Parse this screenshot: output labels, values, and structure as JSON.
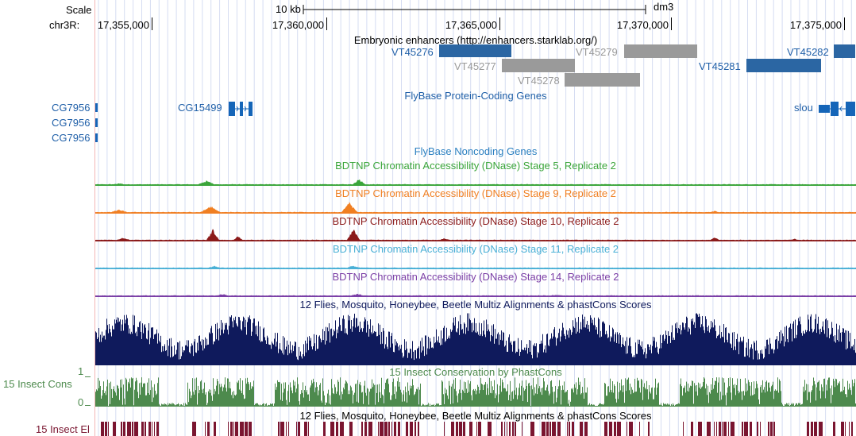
{
  "ruler": {
    "scale_label": "Scale",
    "scale_value": "10 kb",
    "assembly": "dm3",
    "chrom_label": "chr3R:",
    "positions": [
      "17,355,000",
      "17,360,000",
      "17,365,000",
      "17,370,000",
      "17,375,000"
    ]
  },
  "tracks": {
    "enhancers": {
      "title": "Embryonic enhancers (http://enhancers.starklab.org/)",
      "items": [
        {
          "label": "VT45276",
          "color": "#2b66a3"
        },
        {
          "label": "VT45277",
          "color": "#9a9a9a"
        },
        {
          "label": "VT45278",
          "color": "#9a9a9a"
        },
        {
          "label": "VT45279",
          "color": "#9a9a9a"
        },
        {
          "label": "VT45281",
          "color": "#2b66a3"
        },
        {
          "label": "VT45282",
          "color": "#2b66a3"
        }
      ]
    },
    "flybase_coding": {
      "title": "FlyBase Protein-Coding Genes",
      "genes": [
        "CG7956",
        "CG7956",
        "CG7956",
        "CG15499",
        "slou"
      ],
      "color": "#1565b8"
    },
    "flybase_noncoding": {
      "title": "FlyBase Noncoding Genes",
      "color": "#2a7fc0"
    },
    "dnase": [
      {
        "title": "BDTNP Chromatin Accessibility (DNase) Stage 5, Replicate 2",
        "color": "#3aa53a"
      },
      {
        "title": "BDTNP Chromatin Accessibility (DNase) Stage 9, Replicate 2",
        "color": "#f07f22"
      },
      {
        "title": "BDTNP Chromatin Accessibility (DNase) Stage 10, Replicate 2",
        "color": "#8b1a1a"
      },
      {
        "title": "BDTNP Chromatin Accessibility (DNase) Stage 11, Replicate 2",
        "color": "#4ab0d6"
      },
      {
        "title": "BDTNP Chromatin Accessibility (DNase) Stage 14, Replicate 2",
        "color": "#7b3fa6"
      }
    ],
    "multiz": {
      "title": "12 Flies, Mosquito, Honeybee, Beetle Multiz Alignments & phastCons Scores",
      "color": "#0f1a5c"
    },
    "phastcons": {
      "title": "15 Insect Conservation by PhastCons",
      "side_label": "15 Insect Cons",
      "ymax": "1",
      "ymin": "0",
      "color": "#4d8a4d"
    },
    "elements": {
      "title": "12 Flies, Mosquito, Honeybee, Beetle Multiz Alignments & phastCons Scores",
      "side_label": "15 Insect El",
      "color": "#7a1530"
    }
  }
}
